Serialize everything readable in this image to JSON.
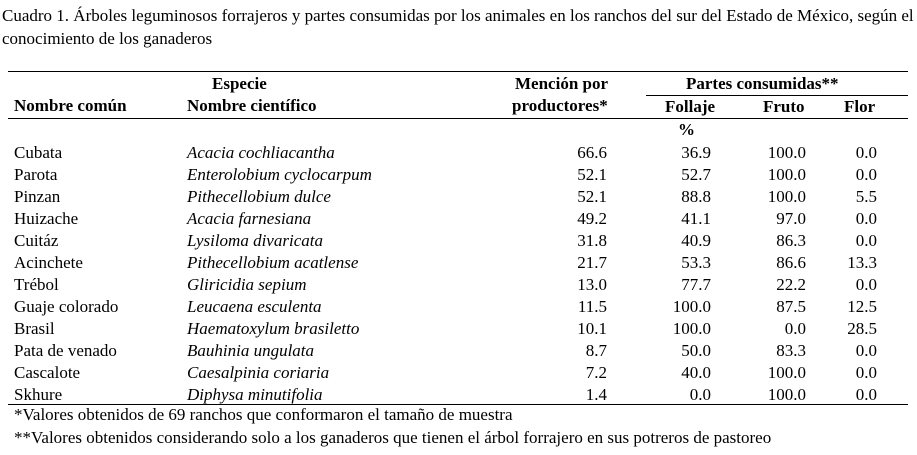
{
  "caption": "Cuadro 1. Árboles leguminosos forrajeros y partes consumidas por los animales en los ranchos del sur del Estado de México, según el conocimiento de los ganaderos",
  "headers": {
    "especie": "Especie",
    "nombre_comun": "Nombre común",
    "nombre_cientifico": "Nombre científico",
    "mencion_line1": "Mención por",
    "mencion_line2": "productores*",
    "partes": "Partes consumidas**",
    "follaje": "Follaje",
    "fruto": "Fruto",
    "flor": "Flor",
    "unit": "%"
  },
  "rows": [
    {
      "comun": "Cubata",
      "cientifico": "Acacia cochliacantha",
      "mencion": "66.6",
      "follaje": "36.9",
      "fruto": "100.0",
      "flor": "0.0"
    },
    {
      "comun": "Parota",
      "cientifico": "Enterolobium cyclocarpum",
      "mencion": "52.1",
      "follaje": "52.7",
      "fruto": "100.0",
      "flor": "0.0"
    },
    {
      "comun": "Pinzan",
      "cientifico": "Pithecellobium dulce",
      "mencion": "52.1",
      "follaje": "88.8",
      "fruto": "100.0",
      "flor": "5.5"
    },
    {
      "comun": "Huizache",
      "cientifico": "Acacia farnesiana",
      "mencion": "49.2",
      "follaje": "41.1",
      "fruto": "97.0",
      "flor": "0.0"
    },
    {
      "comun": "Cuitáz",
      "cientifico": "Lysiloma divaricata",
      "mencion": "31.8",
      "follaje": "40.9",
      "fruto": "86.3",
      "flor": "0.0"
    },
    {
      "comun": "Acinchete",
      "cientifico": "Pithecellobium acatlense",
      "mencion": "21.7",
      "follaje": "53.3",
      "fruto": "86.6",
      "flor": "13.3"
    },
    {
      "comun": "Trébol",
      "cientifico": "Gliricidia sepium",
      "mencion": "13.0",
      "follaje": "77.7",
      "fruto": "22.2",
      "flor": "0.0"
    },
    {
      "comun": "Guaje colorado",
      "cientifico": "Leucaena esculenta",
      "mencion": "11.5",
      "follaje": "100.0",
      "fruto": "87.5",
      "flor": "12.5"
    },
    {
      "comun": "Brasil",
      "cientifico": "Haematoxylum brasiletto",
      "mencion": "10.1",
      "follaje": "100.0",
      "fruto": "0.0",
      "flor": "28.5"
    },
    {
      "comun": "Pata de venado",
      "cientifico": "Bauhinia ungulata",
      "mencion": "8.7",
      "follaje": "50.0",
      "fruto": "83.3",
      "flor": "0.0"
    },
    {
      "comun": "Cascalote",
      "cientifico": "Caesalpinia coriaria",
      "mencion": "7.2",
      "follaje": "40.0",
      "fruto": "100.0",
      "flor": "0.0"
    },
    {
      "comun": "Skhure",
      "cientifico": "Diphysa minutifolia",
      "mencion": "1.4",
      "follaje": "0.0",
      "fruto": "100.0",
      "flor": "0.0"
    }
  ],
  "footnotes": [
    "*Valores obtenidos de 69 ranchos que conformaron el tamaño de muestra",
    "**Valores obtenidos considerando solo a los ganaderos que tienen el árbol forrajero en sus potreros de pastoreo"
  ]
}
